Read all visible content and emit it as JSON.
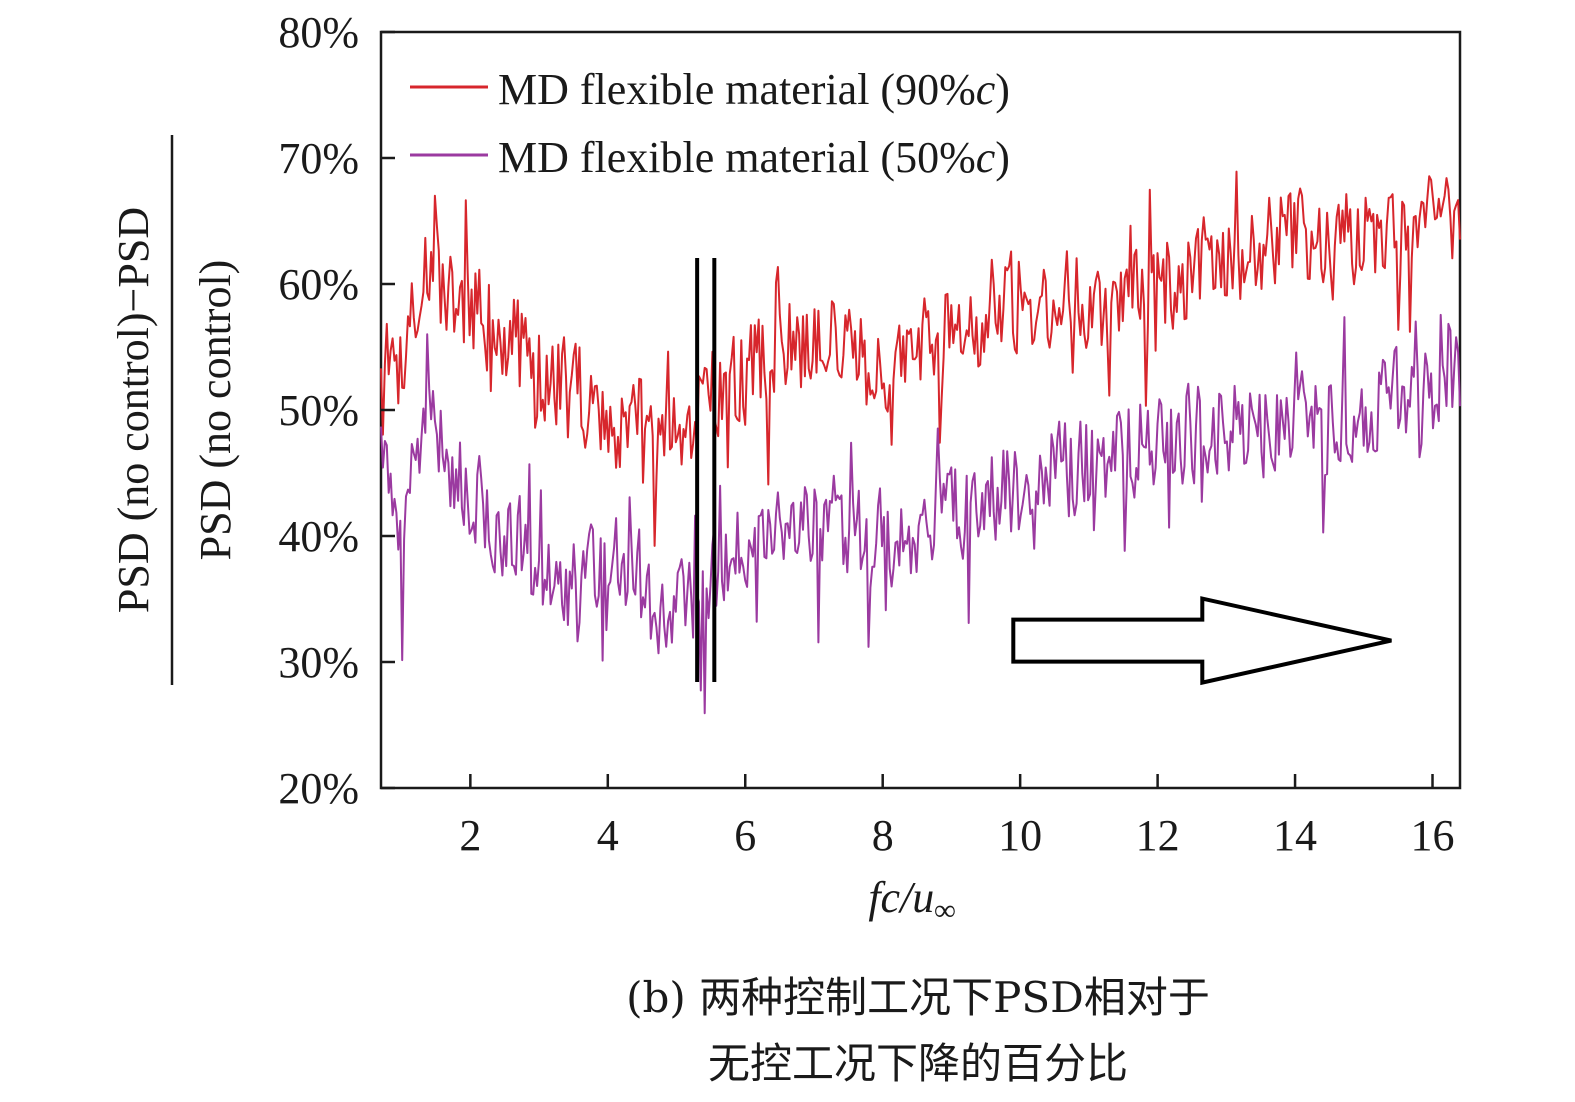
{
  "chart_data": {
    "type": "line",
    "ylabel_numerator": "PSD (no control)−PSD",
    "ylabel_denominator": "PSD (no control)",
    "xlabel_main": "fc/u",
    "xlabel_sub": "∞",
    "xlim": [
      0.7,
      16.4
    ],
    "ylim": [
      20,
      80
    ],
    "grid": false,
    "x_ticks": [
      2,
      4,
      6,
      8,
      10,
      12,
      14,
      16
    ],
    "x_tick_labels": [
      "2",
      "4",
      "6",
      "8",
      "10",
      "12",
      "14",
      "16"
    ],
    "y_ticks": [
      20,
      30,
      40,
      50,
      60,
      70,
      80
    ],
    "y_tick_labels": [
      "20%",
      "30%",
      "40%",
      "50%",
      "60%",
      "70%",
      "80%"
    ],
    "legend_placement": "top-left",
    "series": [
      {
        "name": "MD flexible material (90%c)",
        "legend_prefix": "MD flexible material (90%",
        "legend_italic": "c",
        "legend_suffix": ")",
        "color": "#d7262c",
        "x": [
          0.7,
          1.0,
          1.3,
          1.6,
          2.0,
          2.5,
          3.0,
          3.5,
          3.8,
          4.2,
          4.5,
          4.8,
          5.0,
          5.3,
          5.5,
          5.8,
          6.0,
          6.5,
          7.0,
          7.5,
          7.9,
          8.2,
          8.5,
          9.0,
          9.5,
          10.0,
          10.5,
          11.0,
          11.5,
          12.0,
          12.5,
          13.0,
          13.5,
          14.0,
          14.5,
          15.0,
          15.5,
          16.0,
          16.4
        ],
        "values": [
          55,
          54,
          62,
          59,
          58,
          56,
          53,
          52,
          50,
          48,
          49,
          48,
          47.5,
          50,
          52,
          52,
          53,
          55,
          55,
          55,
          53,
          53,
          55,
          56,
          57,
          59,
          59,
          59,
          58,
          60,
          61,
          62,
          63,
          64,
          64,
          64,
          64,
          65,
          64
        ]
      },
      {
        "name": "MD flexible material (50%c)",
        "legend_prefix": "MD flexible material (50%",
        "legend_italic": "c",
        "legend_suffix": ")",
        "color": "#9b3aa0",
        "x": [
          0.7,
          0.9,
          1.0,
          1.3,
          1.6,
          2.0,
          2.5,
          3.0,
          3.5,
          4.0,
          4.5,
          4.8,
          5.0,
          5.3,
          5.5,
          5.8,
          6.0,
          6.5,
          7.0,
          7.5,
          8.0,
          8.2,
          8.5,
          9.0,
          9.5,
          10.0,
          10.5,
          11.0,
          11.5,
          12.0,
          12.5,
          13.0,
          13.5,
          14.0,
          14.5,
          15.0,
          15.5,
          16.0,
          16.4
        ],
        "values": [
          50,
          40,
          37,
          50,
          47,
          44,
          40,
          37,
          36,
          38,
          36,
          34,
          34,
          36,
          36,
          39,
          40,
          41,
          42,
          41,
          40,
          38,
          41,
          42,
          43,
          44,
          45,
          46,
          47,
          48,
          48,
          49,
          49,
          50,
          49,
          50,
          51,
          52,
          52
        ]
      }
    ],
    "markers": [
      {
        "type": "vertical-line",
        "x": 5.3
      },
      {
        "type": "vertical-line",
        "x": 5.55
      },
      {
        "type": "right-arrow",
        "x_start": 9.9,
        "x_end": 15.4,
        "y_center": 31.7
      }
    ],
    "caption_line1": "(b) 两种控制工况下PSD相对于",
    "caption_line2": "无控工况下降的百分比"
  }
}
